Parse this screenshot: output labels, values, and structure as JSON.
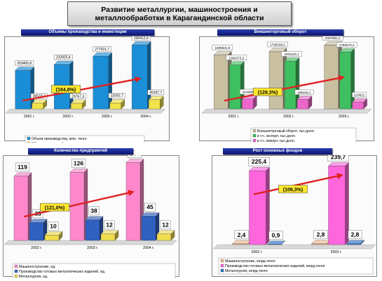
{
  "page_title": "Развитие металлургии, машиностроения и\nметаллообработки в Карагандинской области",
  "colors": {
    "panel_header": "#0a1470",
    "arrow": "#e02020",
    "frame": "#333333"
  },
  "chart_data": [
    {
      "type": "bar",
      "title": "Объемы производства и инвестиции",
      "categories": [
        "2001 г.",
        "2002 г.",
        "2003 г.",
        "2004 г."
      ],
      "series": [
        {
          "name": "Объем производства, млн. тенге",
          "values": [
            203405.8,
            233925.4,
            277631.7,
            336412.9
          ],
          "labels": [
            "203405,8",
            "233925,4",
            "277631,7",
            "336412,9"
          ],
          "color": "#1a8fd8"
        },
        {
          "name": "Объем инвестиций в отрасль, млн тенге",
          "values": [
            30533.1,
            29767.3,
            32092.7,
            49187.7
          ],
          "labels": [
            "30533,1",
            "29767,3",
            "32092,7",
            "49187,7"
          ],
          "color": "#f2e24a"
        }
      ],
      "annotation": "(164,8%)",
      "ylim": [
        0,
        360000
      ]
    },
    {
      "type": "bar",
      "title": "Внешнеторговый оборот",
      "categories": [
        "2001 г.",
        "2002 г.",
        "2003 г."
      ],
      "series": [
        {
          "name": "Внешнеторговый оборот, тыс.долл.",
          "values": [
            1696631.9,
            1799339.2,
            2007891.2
          ],
          "labels": [
            "1696631,9",
            "1799339,2",
            "2007891,2"
          ],
          "color": "#c8c0a0"
        },
        {
          "name": "в т.ч. экспорт, тыс.долл.",
          "values": [
            1384373.2,
            1501115.1,
            1789270.2
          ],
          "labels": [
            "1384373,2",
            "1501115,1",
            "1789270,2"
          ],
          "color": "#3ec060"
        },
        {
          "name": "в т.ч. импорт, тыс.долл.",
          "values": [
            312258.7,
            298226.1,
            218621
          ],
          "labels": [
            "312258,7",
            "298226,1",
            "218621"
          ],
          "color": "#ee66cc"
        }
      ],
      "annotation": "(129,3%)",
      "ylim": [
        0,
        2150000
      ]
    },
    {
      "type": "bar",
      "title": "Количество предприятий",
      "categories": [
        "2002 г.",
        "2003 г.",
        "2004 г."
      ],
      "series": [
        {
          "name": "Машиностроение, ед.",
          "values": [
            119,
            126,
            144
          ],
          "labels": [
            "119",
            "126",
            "144"
          ],
          "color": "#ff88cc"
        },
        {
          "name": "Производство готовых металлических изделий, ед.",
          "values": [
            33,
            38,
            45
          ],
          "labels": [
            "33",
            "38",
            "45"
          ],
          "color": "#3060c0"
        },
        {
          "name": "Металлургия, ед.",
          "values": [
            10,
            12,
            12
          ],
          "labels": [
            "10",
            "12",
            "12"
          ],
          "color": "#f0dc50"
        }
      ],
      "annotation": "(121,0%)",
      "ylim": [
        0,
        150
      ]
    },
    {
      "type": "bar",
      "title": "Рост основных фондов",
      "categories": [
        "2002 г.",
        "2003 г."
      ],
      "series": [
        {
          "name": "Машиностроение, млрд.тенге",
          "values": [
            2.4,
            2.8
          ],
          "labels": [
            "2,4",
            "2,8"
          ],
          "color": "#f0b890"
        },
        {
          "name": "Производство готовых металлических изделий, млрд.тенге",
          "values": [
            225.4,
            239.7
          ],
          "labels": [
            "225,4",
            "239,7"
          ],
          "color": "#ff66dd"
        },
        {
          "name": "Металлургия, млрд.тенге",
          "values": [
            0.9,
            2.8
          ],
          "labels": [
            "0,9",
            "2,8"
          ],
          "color": "#2a70c8"
        }
      ],
      "annotation": "(106,3%)",
      "ylim": [
        0,
        260
      ]
    }
  ]
}
